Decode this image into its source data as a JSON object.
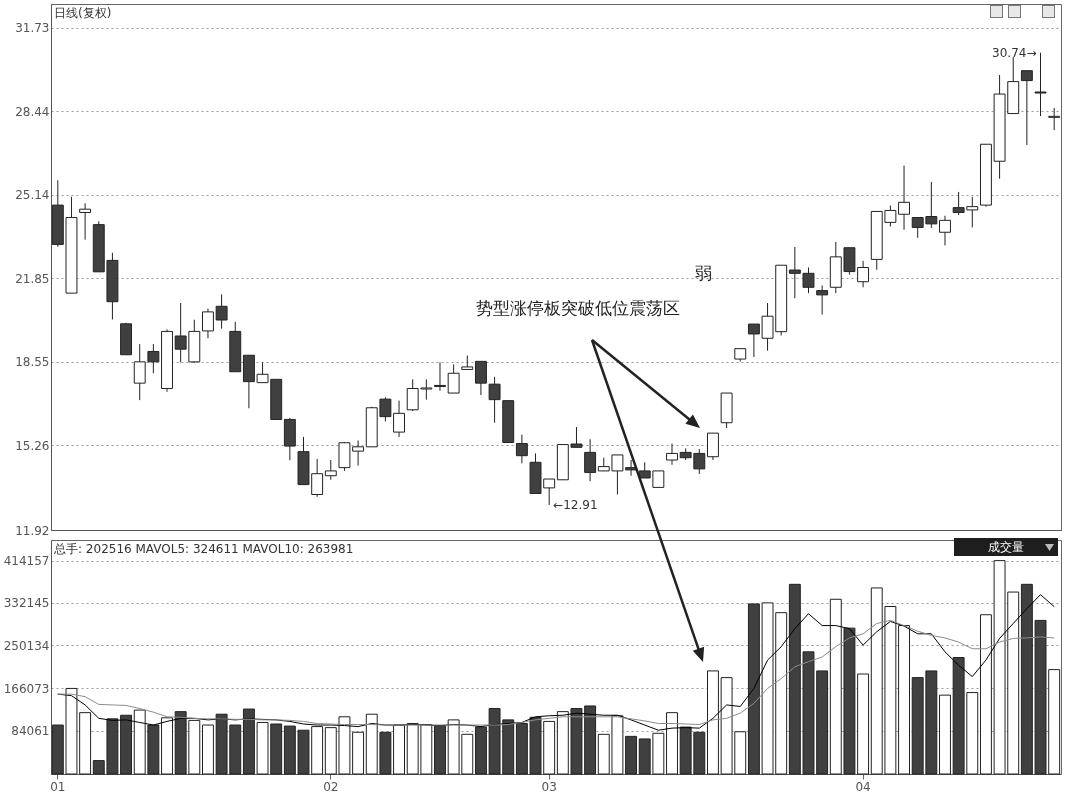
{
  "chart_data": [
    {
      "type": "candlestick",
      "title": "日线(复权)",
      "categories": [
        "01",
        null,
        null,
        null,
        null,
        null,
        null,
        null,
        null,
        null,
        null,
        null,
        null,
        null,
        null,
        null,
        null,
        null,
        null,
        null,
        "02",
        null,
        null,
        null,
        null,
        null,
        null,
        null,
        null,
        null,
        null,
        null,
        null,
        null,
        null,
        null,
        "03",
        null,
        null,
        null,
        null,
        null,
        null,
        null,
        null,
        null,
        null,
        null,
        null,
        null,
        null,
        null,
        null,
        null,
        null,
        null,
        null,
        null,
        null,
        "04",
        null,
        null,
        null,
        null,
        null,
        null,
        null,
        null,
        null,
        null,
        null,
        null,
        null,
        null
      ],
      "ohlc": [
        [
          24.73,
          25.71,
          23.09,
          23.18
        ],
        [
          21.26,
          25.06,
          21.26,
          24.24
        ],
        [
          24.44,
          24.8,
          23.37,
          24.57
        ],
        [
          23.96,
          24.09,
          22.1,
          22.1
        ],
        [
          22.55,
          22.85,
          20.22,
          20.92
        ],
        [
          20.05,
          20.09,
          18.83,
          18.83
        ],
        [
          17.71,
          19.25,
          17.04,
          18.55
        ],
        [
          18.96,
          19.25,
          18.1,
          18.55
        ],
        [
          17.5,
          19.83,
          17.37,
          19.75
        ],
        [
          19.57,
          20.87,
          18.53,
          19.05
        ],
        [
          18.55,
          20.21,
          18.51,
          19.75
        ],
        [
          19.77,
          20.65,
          19.48,
          20.52
        ],
        [
          20.74,
          21.21,
          19.86,
          20.2
        ],
        [
          19.75,
          20.13,
          18.16,
          18.16
        ],
        [
          18.81,
          18.81,
          16.72,
          17.77
        ],
        [
          17.73,
          18.53,
          17.73,
          18.06
        ],
        [
          17.86,
          17.86,
          16.28,
          16.28
        ],
        [
          16.28,
          16.34,
          14.67,
          15.23
        ],
        [
          15.01,
          15.59,
          13.71,
          13.71
        ],
        [
          13.32,
          14.72,
          13.23,
          14.14
        ],
        [
          14.06,
          14.68,
          13.9,
          14.25
        ],
        [
          14.38,
          15.39,
          14.25,
          15.36
        ],
        [
          15.03,
          15.45,
          14.46,
          15.2
        ],
        [
          15.2,
          16.78,
          15.2,
          16.74
        ],
        [
          17.08,
          17.15,
          16.2,
          16.39
        ],
        [
          15.78,
          17.02,
          15.59,
          16.52
        ],
        [
          16.66,
          17.86,
          16.61,
          17.5
        ],
        [
          17.48,
          17.86,
          17.06,
          17.52
        ],
        [
          17.62,
          18.53,
          17.41,
          17.58
        ],
        [
          17.32,
          18.45,
          17.32,
          18.1
        ],
        [
          18.25,
          18.8,
          18.25,
          18.35
        ],
        [
          18.57,
          18.57,
          17.24,
          17.71
        ],
        [
          17.67,
          17.96,
          16.15,
          17.06
        ],
        [
          17.02,
          17.02,
          15.37,
          15.37
        ],
        [
          15.33,
          15.68,
          14.55,
          14.85
        ],
        [
          14.59,
          14.94,
          13.36,
          13.36
        ],
        [
          13.58,
          13.93,
          12.91,
          13.93
        ],
        [
          13.9,
          15.29,
          13.9,
          15.29
        ],
        [
          15.31,
          15.98,
          15.18,
          15.18
        ],
        [
          14.98,
          15.5,
          13.84,
          14.19
        ],
        [
          14.25,
          14.77,
          14.25,
          14.42
        ],
        [
          14.25,
          14.88,
          13.32,
          14.88
        ],
        [
          14.38,
          14.68,
          14.06,
          14.29
        ],
        [
          14.25,
          14.59,
          13.97,
          13.97
        ],
        [
          13.6,
          14.25,
          13.6,
          14.25
        ],
        [
          14.68,
          15.33,
          14.49,
          14.94
        ],
        [
          14.98,
          15.14,
          14.68,
          14.77
        ],
        [
          14.94,
          15.11,
          14.13,
          14.33
        ],
        [
          14.81,
          15.74,
          14.68,
          15.74
        ],
        [
          16.15,
          17.32,
          15.94,
          17.32
        ],
        [
          18.66,
          19.07,
          18.57,
          19.07
        ],
        [
          20.04,
          20.04,
          18.74,
          19.65
        ],
        [
          19.48,
          20.87,
          18.99,
          20.35
        ],
        [
          19.74,
          22.36,
          19.59,
          22.36
        ],
        [
          22.17,
          23.08,
          21.06,
          22.04
        ],
        [
          22.04,
          22.27,
          21.26,
          21.49
        ],
        [
          21.36,
          21.56,
          20.41,
          21.19
        ],
        [
          21.49,
          23.28,
          21.26,
          22.69
        ],
        [
          23.05,
          23.05,
          21.99,
          22.11
        ],
        [
          21.71,
          22.53,
          21.49,
          22.27
        ],
        [
          22.59,
          24.48,
          22.18,
          24.48
        ],
        [
          24.05,
          24.71,
          23.89,
          24.52
        ],
        [
          24.37,
          26.29,
          23.76,
          24.84
        ],
        [
          24.24,
          24.24,
          23.44,
          23.85
        ],
        [
          24.28,
          25.64,
          23.83,
          23.99
        ],
        [
          23.66,
          24.31,
          23.14,
          24.13
        ],
        [
          24.63,
          25.25,
          24.34,
          24.44
        ],
        [
          24.54,
          25.06,
          23.85,
          24.67
        ],
        [
          24.73,
          27.13,
          24.67,
          27.13
        ],
        [
          26.46,
          29.86,
          25.77,
          29.11
        ],
        [
          28.34,
          30.57,
          28.34,
          29.6
        ],
        [
          30.03,
          30.03,
          27.1,
          29.64
        ],
        [
          29.19,
          30.74,
          28.24,
          29.15
        ],
        [
          28.19,
          28.56,
          27.69,
          28.23
        ]
      ],
      "colors": [
        "#404040",
        "#ffffff",
        "#ffffff",
        "#404040",
        "#404040",
        "#404040",
        "#ffffff",
        "#404040",
        "#ffffff",
        "#404040",
        "#ffffff",
        "#ffffff",
        "#404040",
        "#404040",
        "#404040",
        "#ffffff",
        "#404040",
        "#404040",
        "#404040",
        "#ffffff",
        "#ffffff",
        "#ffffff",
        "#ffffff",
        "#ffffff",
        "#404040",
        "#ffffff",
        "#ffffff",
        "#ffffff",
        "#404040",
        "#ffffff",
        "#ffffff",
        "#404040",
        "#404040",
        "#404040",
        "#404040",
        "#404040",
        "#ffffff",
        "#ffffff",
        "#404040",
        "#404040",
        "#ffffff",
        "#ffffff",
        "#404040",
        "#404040",
        "#ffffff",
        "#ffffff",
        "#404040",
        "#404040",
        "#ffffff",
        "#ffffff",
        "#ffffff",
        "#404040",
        "#ffffff",
        "#ffffff",
        "#404040",
        "#404040",
        "#404040",
        "#ffffff",
        "#404040",
        "#ffffff",
        "#ffffff",
        "#ffffff",
        "#ffffff",
        "#404040",
        "#404040",
        "#ffffff",
        "#404040",
        "#ffffff",
        "#ffffff",
        "#ffffff",
        "#ffffff",
        "#404040",
        "#404040",
        "#ffffff"
      ],
      "ylim": [
        11.92,
        32.66
      ],
      "yticks": [
        11.92,
        15.26,
        18.55,
        21.85,
        25.14,
        28.44,
        31.73
      ],
      "grid": "y",
      "tick_labels": "y",
      "annotations": [
        "弱",
        "势型涨停板突破低位震荡区",
        "←12.91",
        {
          "text": "30.74→",
          "y": 30.74
        }
      ]
    },
    {
      "type": "bar",
      "title": "总手: 202516 MAVOL5: 324611 MAVOL10: 263981",
      "categories": [
        "01",
        null,
        null,
        null,
        null,
        null,
        null,
        null,
        null,
        null,
        null,
        null,
        null,
        null,
        null,
        null,
        null,
        null,
        null,
        null,
        "02",
        null,
        null,
        null,
        null,
        null,
        null,
        null,
        null,
        null,
        null,
        null,
        null,
        null,
        null,
        null,
        "03",
        null,
        null,
        null,
        null,
        null,
        null,
        null,
        null,
        null,
        null,
        null,
        null,
        null,
        null,
        null,
        null,
        null,
        null,
        null,
        null,
        null,
        null,
        "04",
        null,
        null,
        null,
        null,
        null,
        null,
        null,
        null,
        null,
        null,
        null,
        null,
        null,
        null
      ],
      "series": [
        {
          "type": "bar",
          "colors": [
            "#404040",
            "#ffffff",
            "#ffffff",
            "#404040",
            "#404040",
            "#404040",
            "#ffffff",
            "#404040",
            "#ffffff",
            "#404040",
            "#ffffff",
            "#ffffff",
            "#404040",
            "#404040",
            "#404040",
            "#ffffff",
            "#404040",
            "#404040",
            "#404040",
            "#ffffff",
            "#ffffff",
            "#ffffff",
            "#ffffff",
            "#ffffff",
            "#404040",
            "#ffffff",
            "#ffffff",
            "#ffffff",
            "#404040",
            "#ffffff",
            "#ffffff",
            "#404040",
            "#404040",
            "#404040",
            "#404040",
            "#404040",
            "#ffffff",
            "#ffffff",
            "#404040",
            "#404040",
            "#ffffff",
            "#ffffff",
            "#404040",
            "#404040",
            "#ffffff",
            "#ffffff",
            "#404040",
            "#404040",
            "#ffffff",
            "#ffffff",
            "#ffffff",
            "#404040",
            "#ffffff",
            "#ffffff",
            "#404040",
            "#404040",
            "#404040",
            "#ffffff",
            "#404040",
            "#ffffff",
            "#ffffff",
            "#ffffff",
            "#ffffff",
            "#404040",
            "#404040",
            "#ffffff",
            "#404040",
            "#ffffff",
            "#ffffff",
            "#ffffff",
            "#ffffff",
            "#404040",
            "#404040",
            "#ffffff"
          ],
          "values": [
            95000,
            166000,
            119000,
            26000,
            107000,
            114000,
            124000,
            95000,
            109000,
            121000,
            104000,
            95000,
            116000,
            95000,
            126000,
            100000,
            97000,
            93000,
            85000,
            92000,
            90000,
            111000,
            81000,
            116000,
            81000,
            95000,
            98000,
            96000,
            94000,
            105000,
            77000,
            91000,
            127000,
            105000,
            98000,
            110000,
            102000,
            121000,
            127000,
            132000,
            77000,
            113000,
            73000,
            68000,
            79000,
            119000,
            91000,
            81000,
            200000,
            187000,
            82000,
            330000,
            332000,
            313000,
            368000,
            237000,
            200000,
            339000,
            283000,
            194000,
            361000,
            325000,
            288000,
            187000,
            200000,
            153000,
            226000,
            158000,
            309000,
            414000,
            353000,
            368000,
            298000,
            202516
          ]
        },
        {
          "type": "line",
          "color": "#000000",
          "line_style": "solid",
          "values": [
            155000,
            152000,
            134000,
            108000,
            104000,
            105000,
            100000,
            95000,
            102000,
            108000,
            108000,
            105000,
            107000,
            105000,
            107000,
            106000,
            105000,
            102000,
            97000,
            95000,
            95000,
            94000,
            92000,
            98000,
            95000,
            95000,
            96000,
            95000,
            94000,
            96000,
            95000,
            92000,
            96000,
            98000,
            100000,
            111000,
            113000,
            114000,
            118000,
            116000,
            114000,
            114000,
            105000,
            95000,
            85000,
            89000,
            90000,
            89000,
            108000,
            134000,
            131000,
            166000,
            221000,
            247000,
            282000,
            311000,
            288000,
            288000,
            282000,
            250000,
            276000,
            296000,
            287000,
            272000,
            272000,
            237000,
            211000,
            189000,
            221000,
            263000,
            292000,
            321000,
            348000,
            324611
          ]
        },
        {
          "type": "line",
          "color": "#8c8c8c",
          "line_style": "solid",
          "values": [
            155000,
            155000,
            150000,
            135000,
            134000,
            133000,
            127000,
            120000,
            111000,
            110000,
            108000,
            107000,
            107000,
            106000,
            106000,
            105000,
            105000,
            104000,
            102000,
            98000,
            97000,
            96000,
            96000,
            96000,
            95000,
            95000,
            95000,
            95000,
            95000,
            95000,
            95000,
            95000,
            95000,
            96000,
            100000,
            105000,
            108000,
            111000,
            111000,
            111000,
            111000,
            111000,
            107000,
            103000,
            98000,
            98000,
            97000,
            96000,
            105000,
            108000,
            118000,
            137000,
            166000,
            185000,
            208000,
            218000,
            227000,
            247000,
            264000,
            272000,
            292000,
            298000,
            288000,
            277000,
            269000,
            264000,
            256000,
            243000,
            243000,
            256000,
            263000,
            264000,
            266000,
            263981
          ]
        }
      ],
      "ylim": [
        0,
        454000
      ],
      "yticks": [
        84061,
        166073,
        250134,
        332145,
        414157
      ],
      "grid": "y",
      "annotations": [
        "成交量"
      ]
    }
  ]
}
